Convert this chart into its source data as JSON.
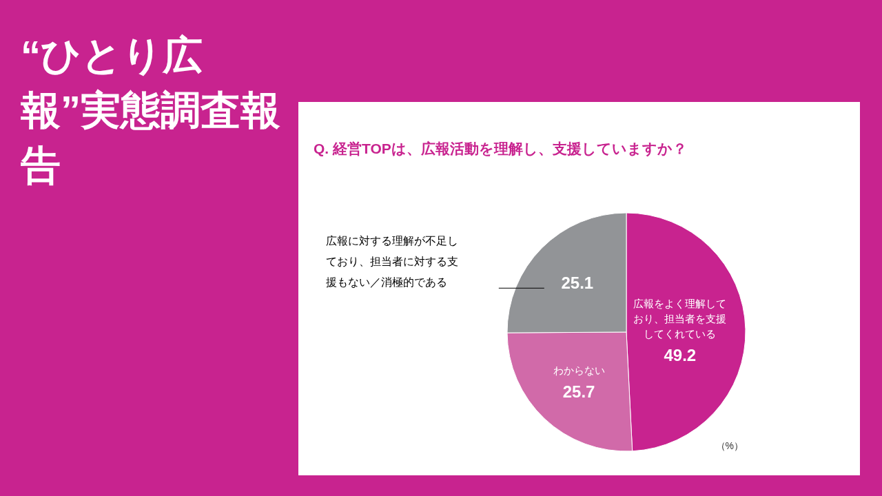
{
  "chart_data": {
    "type": "pie",
    "title": "“ひとり広報”実態調査報告",
    "subtitle": "Q. 経営TOPは、広報活動を理解し、支援していますか？",
    "categories": [
      "広報をよく理解しており、担当者を支援してくれている",
      "わからない",
      "広報に対する理解が不足しており、担当者に対する支援もない／消極的である"
    ],
    "values": [
      49.2,
      25.7,
      25.1
    ],
    "colors": [
      "#c8238f",
      "#d16aa9",
      "#929497"
    ],
    "data_labels": true,
    "annotations": [
      "（%）"
    ]
  }
}
